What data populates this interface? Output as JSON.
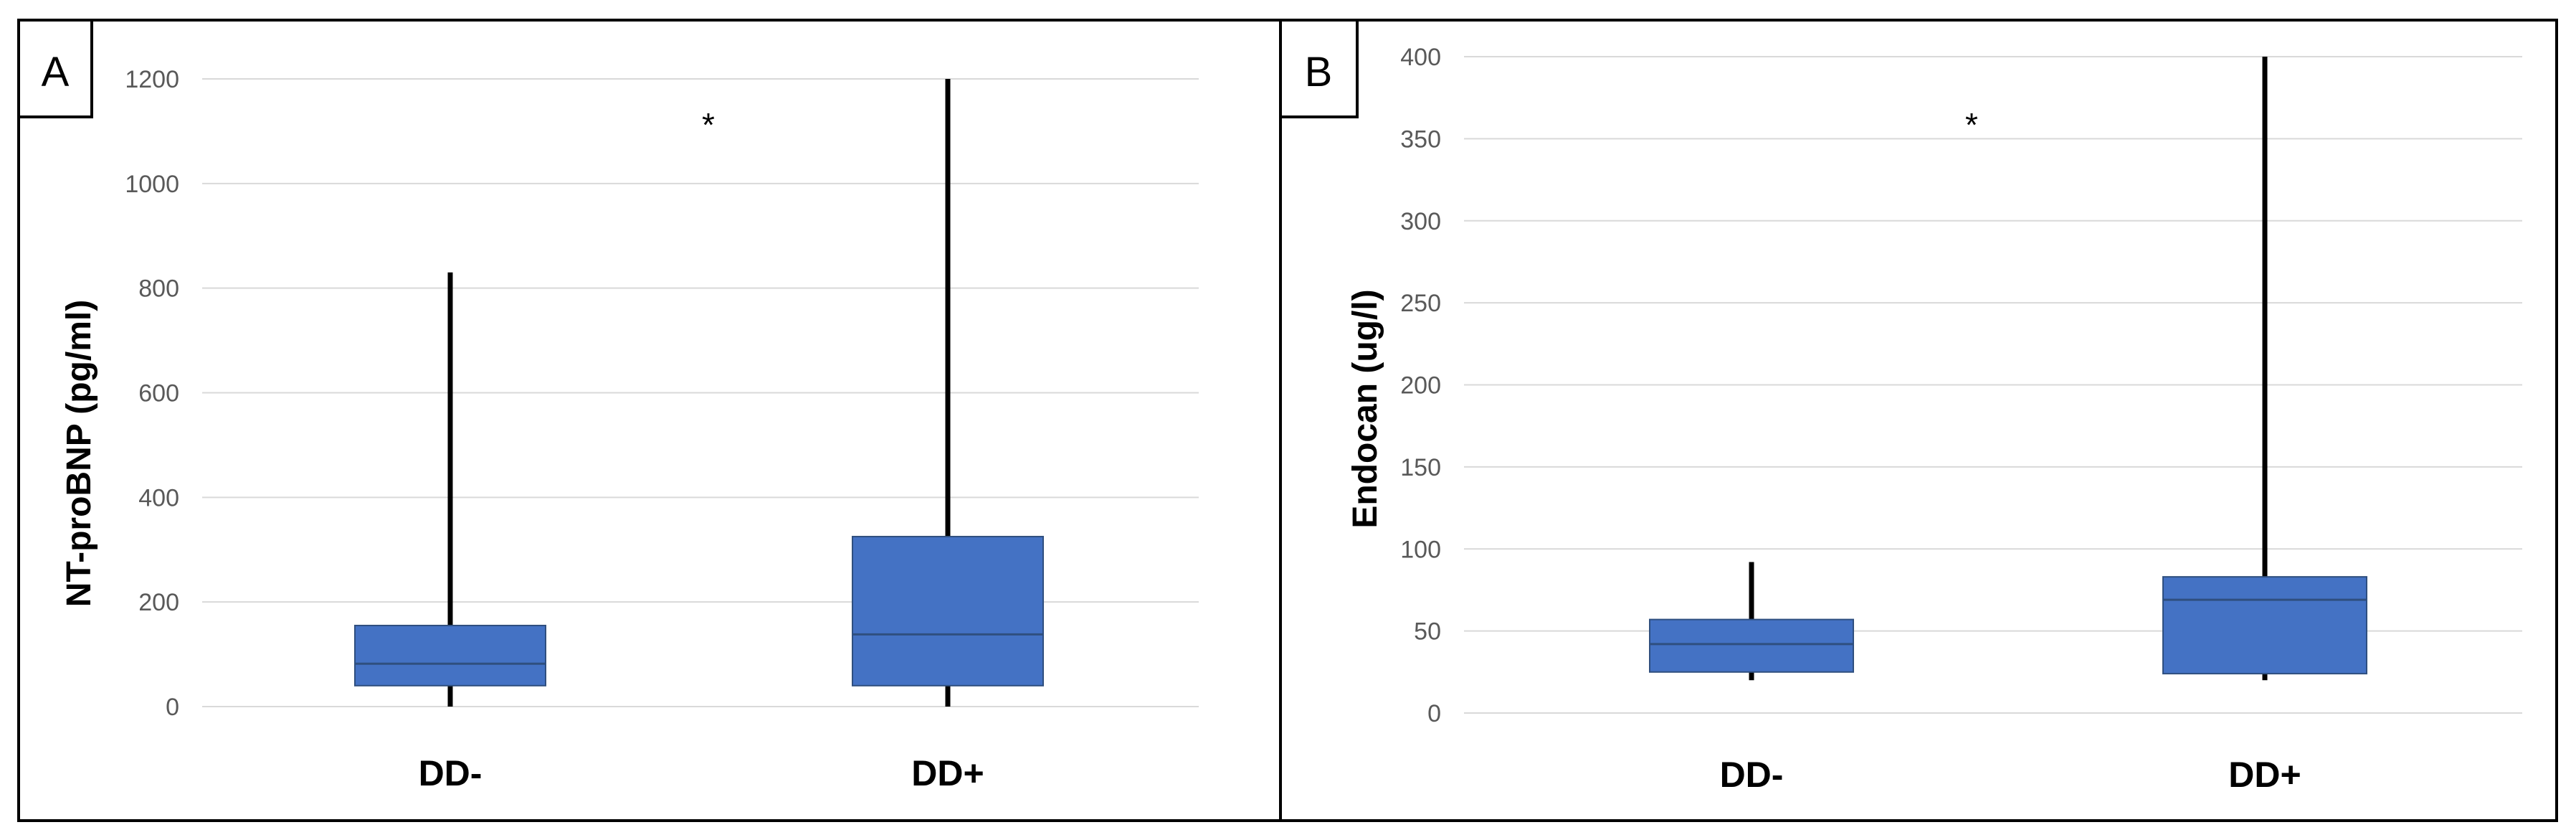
{
  "chart_data": [
    {
      "type": "box",
      "panel_label": "A",
      "ylabel": "NT-proBNP (pg/ml)",
      "ylim": [
        0,
        1200
      ],
      "yticks": [
        0,
        200,
        400,
        600,
        800,
        1000,
        1200
      ],
      "grid": true,
      "categories": [
        "DD-",
        "DD+"
      ],
      "boxes": [
        {
          "category": "DD-",
          "min": 0,
          "q1": 40,
          "median": 82,
          "q3": 155,
          "max": 830
        },
        {
          "category": "DD+",
          "min": 0,
          "q1": 40,
          "median": 138,
          "q3": 325,
          "max": 1200
        }
      ],
      "annotation": "*",
      "box_color": "#4472C4"
    },
    {
      "type": "box",
      "panel_label": "B",
      "ylabel": "Endocan (ug/l)",
      "ylim": [
        0,
        400
      ],
      "yticks": [
        0,
        50,
        100,
        150,
        200,
        250,
        300,
        350,
        400
      ],
      "grid": true,
      "categories": [
        "DD-",
        "DD+"
      ],
      "boxes": [
        {
          "category": "DD-",
          "min": 20,
          "q1": 25,
          "median": 42,
          "q3": 57,
          "max": 92
        },
        {
          "category": "DD+",
          "min": 20,
          "q1": 24,
          "median": 69,
          "q3": 83,
          "max": 400
        }
      ],
      "annotation": "*",
      "box_color": "#4472C4"
    }
  ]
}
